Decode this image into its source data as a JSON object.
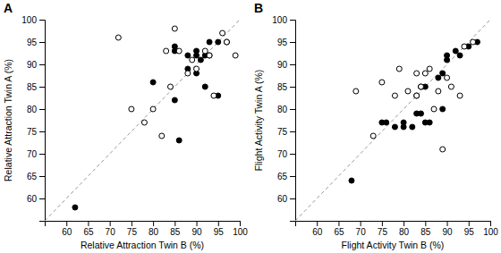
{
  "chart_data": [
    {
      "type": "scatter",
      "title": "A",
      "x_label": "Relative Attraction Twin B (%)",
      "y_label": "Relative Attraction Twin A (%)",
      "xlim": [
        55,
        100
      ],
      "ylim": [
        55,
        100
      ],
      "xticks": [
        60,
        65,
        70,
        75,
        80,
        85,
        90,
        95,
        100
      ],
      "yticks": [
        60,
        65,
        70,
        75,
        80,
        85,
        90,
        95,
        100
      ],
      "series": [
        {
          "type": "line",
          "line_style": "dashed",
          "color": "#999999",
          "x": [
            55,
            100
          ],
          "values": [
            55,
            100
          ]
        },
        {
          "type": "scatter",
          "marker": "circle",
          "color": "#000000",
          "x": [
            62,
            80,
            85,
            85,
            85,
            86,
            88,
            88,
            90,
            90,
            90,
            91,
            92,
            92,
            93,
            93,
            95,
            95,
            97
          ],
          "values": [
            58,
            86,
            82,
            93,
            94,
            73,
            89,
            92,
            88,
            92,
            93,
            91,
            92,
            85,
            92,
            95,
            83,
            95,
            95
          ]
        },
        {
          "type": "scatter",
          "marker": "open-circle",
          "color": "#000000",
          "x": [
            72,
            75,
            78,
            80,
            82,
            83,
            84,
            85,
            86,
            88,
            89,
            90,
            92,
            93,
            94,
            96,
            97,
            99
          ],
          "values": [
            96,
            80,
            77,
            80,
            74,
            93,
            85,
            98,
            93,
            88,
            91,
            89,
            93,
            92,
            83,
            97,
            95,
            92
          ]
        }
      ]
    },
    {
      "type": "scatter",
      "title": "B",
      "x_label": "Flight Activity Twin B (%)",
      "y_label": "Flight Activity Twin A (%)",
      "xlim": [
        55,
        100
      ],
      "ylim": [
        55,
        100
      ],
      "xticks": [
        60,
        65,
        70,
        75,
        80,
        85,
        90,
        95,
        100
      ],
      "yticks": [
        60,
        65,
        70,
        75,
        80,
        85,
        90,
        95,
        100
      ],
      "series": [
        {
          "type": "line",
          "line_style": "dashed",
          "color": "#999999",
          "x": [
            55,
            100
          ],
          "values": [
            55,
            100
          ]
        },
        {
          "type": "scatter",
          "marker": "circle",
          "color": "#000000",
          "x": [
            68,
            75,
            76,
            78,
            80,
            80,
            82,
            83,
            83,
            84,
            84,
            85,
            85,
            86,
            88,
            89,
            89,
            90,
            90,
            92,
            93,
            95,
            97
          ],
          "values": [
            64,
            77,
            77,
            76,
            76,
            77,
            76,
            83,
            79,
            79,
            85,
            85,
            77,
            77,
            87,
            80,
            88,
            91,
            92,
            93,
            92,
            94,
            95
          ]
        },
        {
          "type": "scatter",
          "marker": "open-circle",
          "color": "#000000",
          "x": [
            69,
            73,
            75,
            78,
            79,
            81,
            83,
            83,
            84,
            85,
            86,
            87,
            88,
            89,
            90,
            91,
            93,
            94,
            96
          ],
          "values": [
            84,
            74,
            86,
            83,
            89,
            84,
            83,
            88,
            85,
            88,
            89,
            80,
            84,
            71,
            87,
            85,
            83,
            94,
            95
          ]
        }
      ]
    }
  ]
}
